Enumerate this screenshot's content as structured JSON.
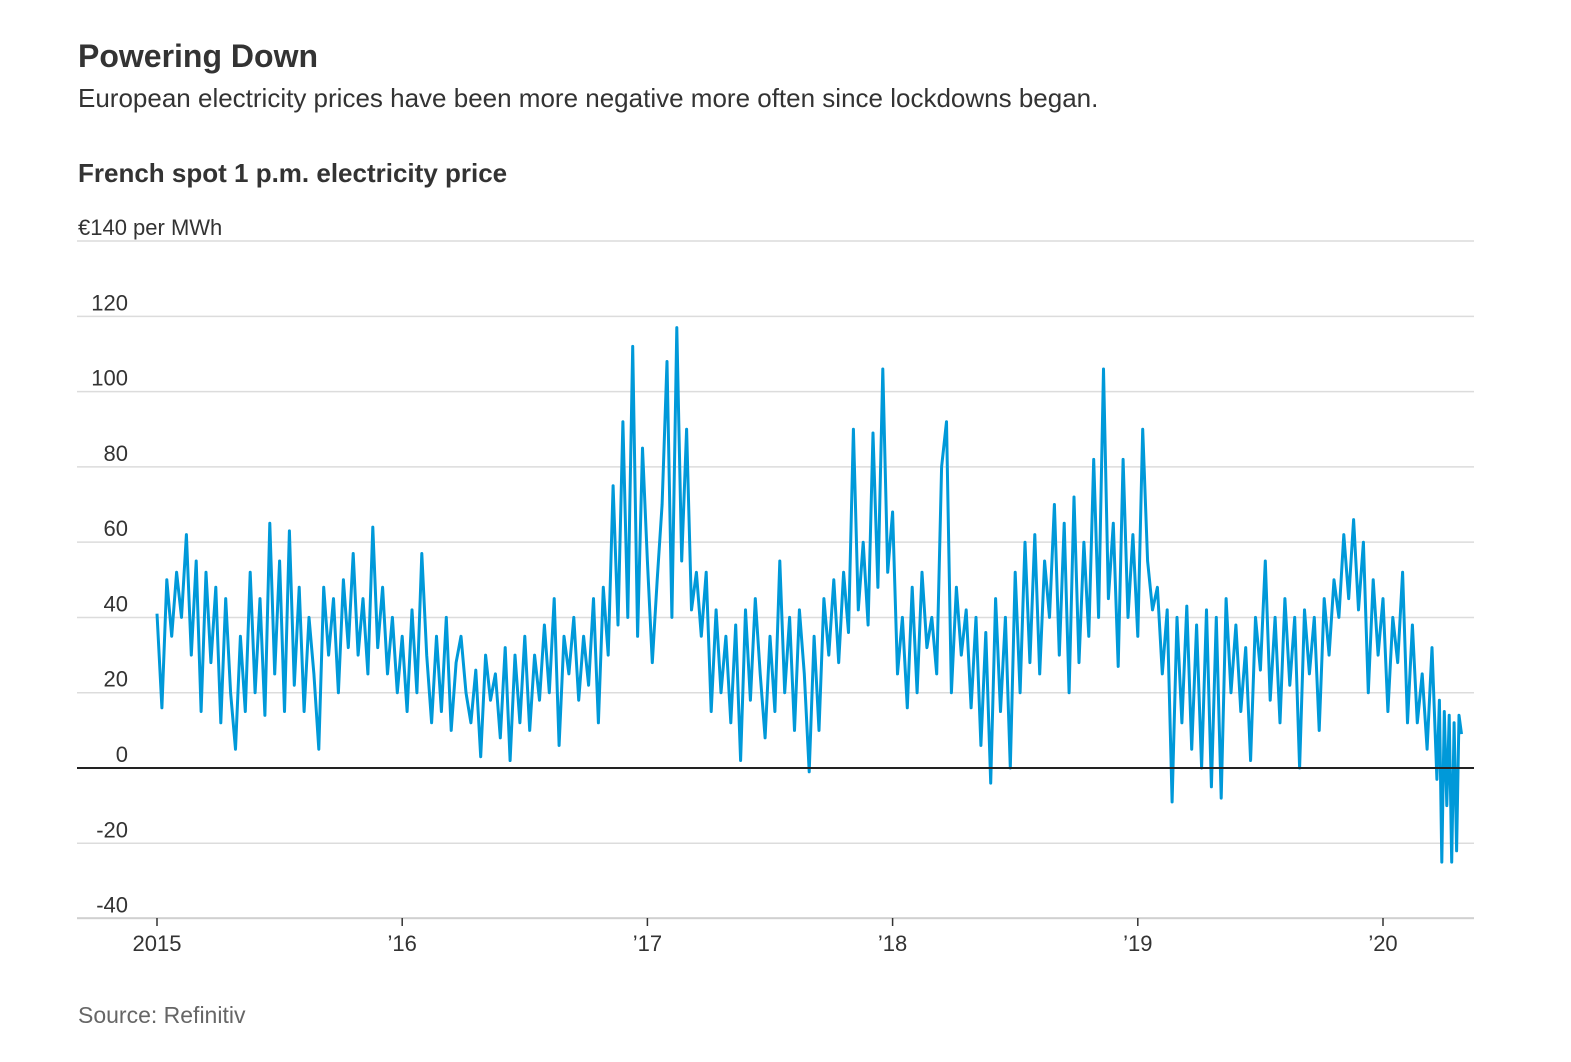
{
  "title": "Powering Down",
  "subtitle": "European electricity prices have been more negative more often since lockdowns began.",
  "source": "Source: Refinitiv",
  "chart_data": {
    "type": "line",
    "title": "French spot 1 p.m. electricity price",
    "ylabel": "€140 per MWh",
    "ylim": [
      -40,
      140
    ],
    "xlim": [
      2015.0,
      2020.32
    ],
    "grid": true,
    "line_color": "#0099d9",
    "y_ticks": [
      {
        "value": -40,
        "label": "-40"
      },
      {
        "value": -20,
        "label": "-20"
      },
      {
        "value": 0,
        "label": "0"
      },
      {
        "value": 20,
        "label": "20"
      },
      {
        "value": 40,
        "label": "40"
      },
      {
        "value": 60,
        "label": "60"
      },
      {
        "value": 80,
        "label": "80"
      },
      {
        "value": 100,
        "label": "100"
      },
      {
        "value": 120,
        "label": "120"
      },
      {
        "value": 140,
        "label": "€140 per MWh"
      }
    ],
    "x_ticks": [
      {
        "value": 2015,
        "label": "2015"
      },
      {
        "value": 2016,
        "label": "’16"
      },
      {
        "value": 2017,
        "label": "’17"
      },
      {
        "value": 2018,
        "label": "’18"
      },
      {
        "value": 2019,
        "label": "’19"
      },
      {
        "value": 2020,
        "label": "’20"
      }
    ],
    "points": [
      [
        2015.0,
        41
      ],
      [
        2015.02,
        16
      ],
      [
        2015.04,
        50
      ],
      [
        2015.06,
        35
      ],
      [
        2015.08,
        52
      ],
      [
        2015.1,
        40
      ],
      [
        2015.12,
        62
      ],
      [
        2015.14,
        30
      ],
      [
        2015.16,
        55
      ],
      [
        2015.18,
        15
      ],
      [
        2015.2,
        52
      ],
      [
        2015.22,
        28
      ],
      [
        2015.24,
        48
      ],
      [
        2015.26,
        12
      ],
      [
        2015.28,
        45
      ],
      [
        2015.3,
        20
      ],
      [
        2015.32,
        5
      ],
      [
        2015.34,
        35
      ],
      [
        2015.36,
        15
      ],
      [
        2015.38,
        52
      ],
      [
        2015.4,
        20
      ],
      [
        2015.42,
        45
      ],
      [
        2015.44,
        14
      ],
      [
        2015.46,
        65
      ],
      [
        2015.48,
        25
      ],
      [
        2015.5,
        55
      ],
      [
        2015.52,
        15
      ],
      [
        2015.54,
        63
      ],
      [
        2015.56,
        22
      ],
      [
        2015.58,
        48
      ],
      [
        2015.6,
        15
      ],
      [
        2015.62,
        40
      ],
      [
        2015.64,
        25
      ],
      [
        2015.66,
        5
      ],
      [
        2015.68,
        48
      ],
      [
        2015.7,
        30
      ],
      [
        2015.72,
        45
      ],
      [
        2015.74,
        20
      ],
      [
        2015.76,
        50
      ],
      [
        2015.78,
        32
      ],
      [
        2015.8,
        57
      ],
      [
        2015.82,
        30
      ],
      [
        2015.84,
        45
      ],
      [
        2015.86,
        25
      ],
      [
        2015.88,
        64
      ],
      [
        2015.9,
        32
      ],
      [
        2015.92,
        48
      ],
      [
        2015.94,
        25
      ],
      [
        2015.96,
        40
      ],
      [
        2015.98,
        20
      ],
      [
        2016.0,
        35
      ],
      [
        2016.02,
        15
      ],
      [
        2016.04,
        42
      ],
      [
        2016.06,
        20
      ],
      [
        2016.08,
        57
      ],
      [
        2016.1,
        30
      ],
      [
        2016.12,
        12
      ],
      [
        2016.14,
        35
      ],
      [
        2016.16,
        15
      ],
      [
        2016.18,
        40
      ],
      [
        2016.2,
        10
      ],
      [
        2016.22,
        28
      ],
      [
        2016.24,
        35
      ],
      [
        2016.26,
        20
      ],
      [
        2016.28,
        12
      ],
      [
        2016.3,
        26
      ],
      [
        2016.32,
        3
      ],
      [
        2016.34,
        30
      ],
      [
        2016.36,
        18
      ],
      [
        2016.38,
        25
      ],
      [
        2016.4,
        8
      ],
      [
        2016.42,
        32
      ],
      [
        2016.44,
        2
      ],
      [
        2016.46,
        30
      ],
      [
        2016.48,
        12
      ],
      [
        2016.5,
        35
      ],
      [
        2016.52,
        10
      ],
      [
        2016.54,
        30
      ],
      [
        2016.56,
        18
      ],
      [
        2016.58,
        38
      ],
      [
        2016.6,
        20
      ],
      [
        2016.62,
        45
      ],
      [
        2016.64,
        6
      ],
      [
        2016.66,
        35
      ],
      [
        2016.68,
        25
      ],
      [
        2016.7,
        40
      ],
      [
        2016.72,
        18
      ],
      [
        2016.74,
        35
      ],
      [
        2016.76,
        22
      ],
      [
        2016.78,
        45
      ],
      [
        2016.8,
        12
      ],
      [
        2016.82,
        48
      ],
      [
        2016.84,
        30
      ],
      [
        2016.86,
        75
      ],
      [
        2016.88,
        38
      ],
      [
        2016.9,
        92
      ],
      [
        2016.92,
        40
      ],
      [
        2016.94,
        112
      ],
      [
        2016.96,
        35
      ],
      [
        2016.98,
        85
      ],
      [
        2017.0,
        55
      ],
      [
        2017.02,
        28
      ],
      [
        2017.04,
        50
      ],
      [
        2017.06,
        70
      ],
      [
        2017.08,
        108
      ],
      [
        2017.1,
        40
      ],
      [
        2017.12,
        117
      ],
      [
        2017.14,
        55
      ],
      [
        2017.16,
        90
      ],
      [
        2017.18,
        42
      ],
      [
        2017.2,
        52
      ],
      [
        2017.22,
        35
      ],
      [
        2017.24,
        52
      ],
      [
        2017.26,
        15
      ],
      [
        2017.28,
        42
      ],
      [
        2017.3,
        20
      ],
      [
        2017.32,
        35
      ],
      [
        2017.34,
        12
      ],
      [
        2017.36,
        38
      ],
      [
        2017.38,
        2
      ],
      [
        2017.4,
        42
      ],
      [
        2017.42,
        18
      ],
      [
        2017.44,
        45
      ],
      [
        2017.46,
        25
      ],
      [
        2017.48,
        8
      ],
      [
        2017.5,
        35
      ],
      [
        2017.52,
        15
      ],
      [
        2017.54,
        55
      ],
      [
        2017.56,
        20
      ],
      [
        2017.58,
        40
      ],
      [
        2017.6,
        10
      ],
      [
        2017.62,
        42
      ],
      [
        2017.64,
        25
      ],
      [
        2017.66,
        -1
      ],
      [
        2017.68,
        35
      ],
      [
        2017.7,
        10
      ],
      [
        2017.72,
        45
      ],
      [
        2017.74,
        30
      ],
      [
        2017.76,
        50
      ],
      [
        2017.78,
        28
      ],
      [
        2017.8,
        52
      ],
      [
        2017.82,
        36
      ],
      [
        2017.84,
        90
      ],
      [
        2017.86,
        42
      ],
      [
        2017.88,
        60
      ],
      [
        2017.9,
        38
      ],
      [
        2017.92,
        89
      ],
      [
        2017.94,
        48
      ],
      [
        2017.96,
        106
      ],
      [
        2017.98,
        52
      ],
      [
        2018.0,
        68
      ],
      [
        2018.02,
        25
      ],
      [
        2018.04,
        40
      ],
      [
        2018.06,
        16
      ],
      [
        2018.08,
        48
      ],
      [
        2018.1,
        20
      ],
      [
        2018.12,
        52
      ],
      [
        2018.14,
        32
      ],
      [
        2018.16,
        40
      ],
      [
        2018.18,
        25
      ],
      [
        2018.2,
        80
      ],
      [
        2018.22,
        92
      ],
      [
        2018.24,
        20
      ],
      [
        2018.26,
        48
      ],
      [
        2018.28,
        30
      ],
      [
        2018.3,
        42
      ],
      [
        2018.32,
        16
      ],
      [
        2018.34,
        40
      ],
      [
        2018.36,
        6
      ],
      [
        2018.38,
        36
      ],
      [
        2018.4,
        -4
      ],
      [
        2018.42,
        45
      ],
      [
        2018.44,
        15
      ],
      [
        2018.46,
        40
      ],
      [
        2018.48,
        0
      ],
      [
        2018.5,
        52
      ],
      [
        2018.52,
        20
      ],
      [
        2018.54,
        60
      ],
      [
        2018.56,
        28
      ],
      [
        2018.58,
        62
      ],
      [
        2018.6,
        25
      ],
      [
        2018.62,
        55
      ],
      [
        2018.64,
        40
      ],
      [
        2018.66,
        70
      ],
      [
        2018.68,
        30
      ],
      [
        2018.7,
        65
      ],
      [
        2018.72,
        20
      ],
      [
        2018.74,
        72
      ],
      [
        2018.76,
        28
      ],
      [
        2018.78,
        60
      ],
      [
        2018.8,
        35
      ],
      [
        2018.82,
        82
      ],
      [
        2018.84,
        40
      ],
      [
        2018.86,
        106
      ],
      [
        2018.88,
        45
      ],
      [
        2018.9,
        65
      ],
      [
        2018.92,
        27
      ],
      [
        2018.94,
        82
      ],
      [
        2018.96,
        40
      ],
      [
        2018.98,
        62
      ],
      [
        2019.0,
        35
      ],
      [
        2019.02,
        90
      ],
      [
        2019.04,
        55
      ],
      [
        2019.06,
        42
      ],
      [
        2019.08,
        48
      ],
      [
        2019.1,
        25
      ],
      [
        2019.12,
        42
      ],
      [
        2019.14,
        -9
      ],
      [
        2019.16,
        40
      ],
      [
        2019.18,
        12
      ],
      [
        2019.2,
        43
      ],
      [
        2019.22,
        5
      ],
      [
        2019.24,
        38
      ],
      [
        2019.26,
        0
      ],
      [
        2019.28,
        42
      ],
      [
        2019.3,
        -5
      ],
      [
        2019.32,
        40
      ],
      [
        2019.34,
        -8
      ],
      [
        2019.36,
        45
      ],
      [
        2019.38,
        20
      ],
      [
        2019.4,
        38
      ],
      [
        2019.42,
        15
      ],
      [
        2019.44,
        32
      ],
      [
        2019.46,
        2
      ],
      [
        2019.48,
        40
      ],
      [
        2019.5,
        26
      ],
      [
        2019.52,
        55
      ],
      [
        2019.54,
        18
      ],
      [
        2019.56,
        40
      ],
      [
        2019.58,
        12
      ],
      [
        2019.6,
        45
      ],
      [
        2019.62,
        22
      ],
      [
        2019.64,
        40
      ],
      [
        2019.66,
        0
      ],
      [
        2019.68,
        42
      ],
      [
        2019.7,
        25
      ],
      [
        2019.72,
        40
      ],
      [
        2019.74,
        10
      ],
      [
        2019.76,
        45
      ],
      [
        2019.78,
        30
      ],
      [
        2019.8,
        50
      ],
      [
        2019.82,
        40
      ],
      [
        2019.84,
        62
      ],
      [
        2019.86,
        45
      ],
      [
        2019.88,
        66
      ],
      [
        2019.9,
        42
      ],
      [
        2019.92,
        60
      ],
      [
        2019.94,
        20
      ],
      [
        2019.96,
        50
      ],
      [
        2019.98,
        30
      ],
      [
        2020.0,
        45
      ],
      [
        2020.02,
        15
      ],
      [
        2020.04,
        40
      ],
      [
        2020.06,
        28
      ],
      [
        2020.08,
        52
      ],
      [
        2020.1,
        12
      ],
      [
        2020.12,
        38
      ],
      [
        2020.14,
        12
      ],
      [
        2020.16,
        25
      ],
      [
        2020.18,
        5
      ],
      [
        2020.2,
        32
      ],
      [
        2020.22,
        -3
      ],
      [
        2020.23,
        18
      ],
      [
        2020.24,
        -25
      ],
      [
        2020.25,
        15
      ],
      [
        2020.26,
        -10
      ],
      [
        2020.27,
        14
      ],
      [
        2020.28,
        -25
      ],
      [
        2020.29,
        12
      ],
      [
        2020.3,
        -22
      ],
      [
        2020.31,
        14
      ],
      [
        2020.32,
        9
      ]
    ]
  }
}
